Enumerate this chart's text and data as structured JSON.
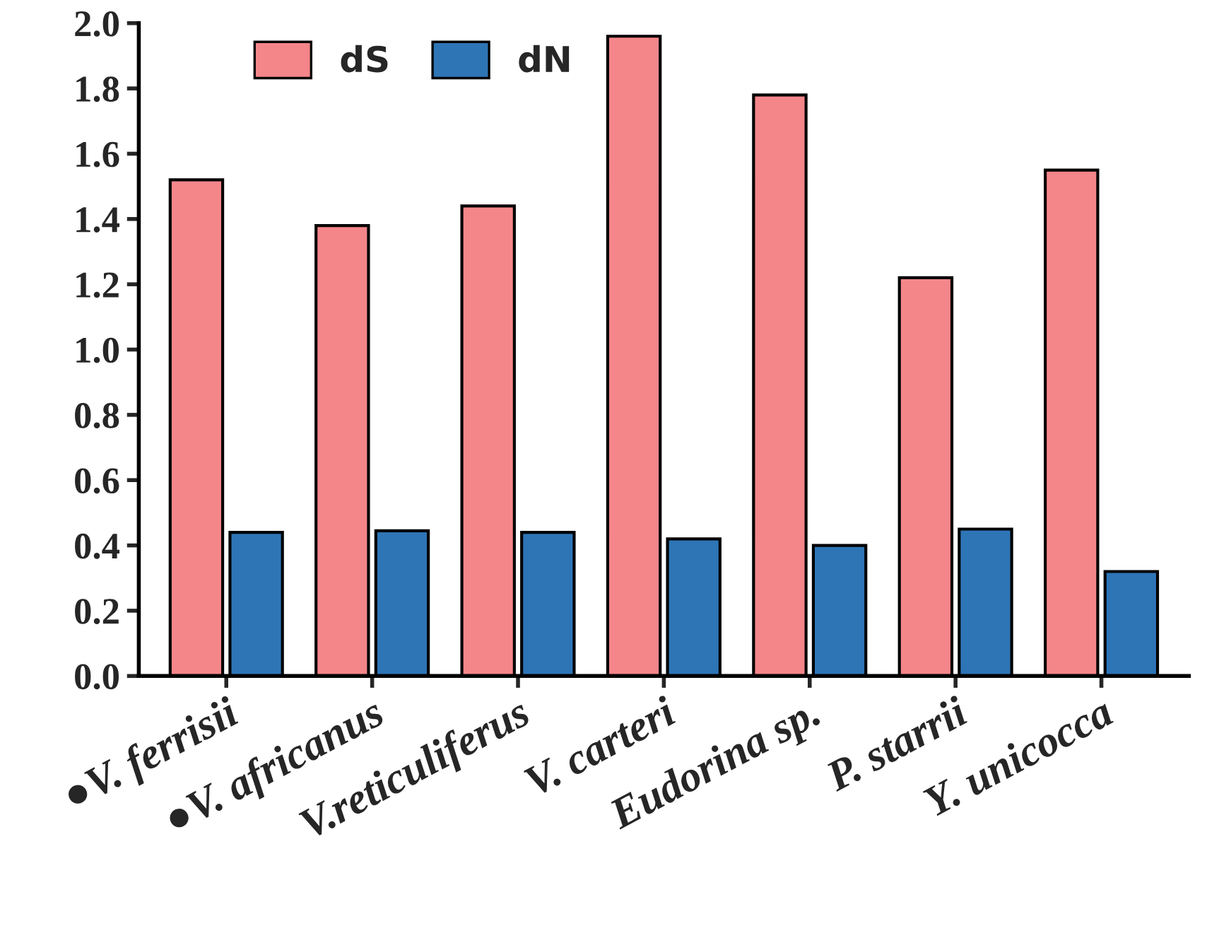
{
  "chart_data": {
    "type": "bar",
    "categories": [
      "●V. ferrisii",
      "●V. africanus",
      "V.reticuliferus",
      "V. carteri",
      "Eudorina sp.",
      "P. starrii",
      "Y. unicocca"
    ],
    "series": [
      {
        "name": "dS",
        "color": "#f4868a",
        "values": [
          1.52,
          1.38,
          1.44,
          1.96,
          1.78,
          1.22,
          1.55
        ]
      },
      {
        "name": "dN",
        "color": "#2e75b6",
        "values": [
          0.44,
          0.445,
          0.44,
          0.42,
          0.4,
          0.45,
          0.32
        ]
      }
    ],
    "ylim": [
      0,
      2.0
    ],
    "yticks": [
      {
        "value": 0,
        "label": "0.0"
      },
      {
        "value": 0.2,
        "label": "0.2"
      },
      {
        "value": 0.4,
        "label": "0.4"
      },
      {
        "value": 0.6,
        "label": "0.6"
      },
      {
        "value": 0.8,
        "label": "0.8"
      },
      {
        "value": 1.0,
        "label": "1.0"
      },
      {
        "value": 1.2,
        "label": "1.2"
      },
      {
        "value": 1.4,
        "label": "1.4"
      },
      {
        "value": 1.6,
        "label": "1.6"
      },
      {
        "value": 1.8,
        "label": "1.8"
      },
      {
        "value": 2.0,
        "label": "2.0"
      }
    ],
    "grid": false,
    "legend": "top left"
  }
}
